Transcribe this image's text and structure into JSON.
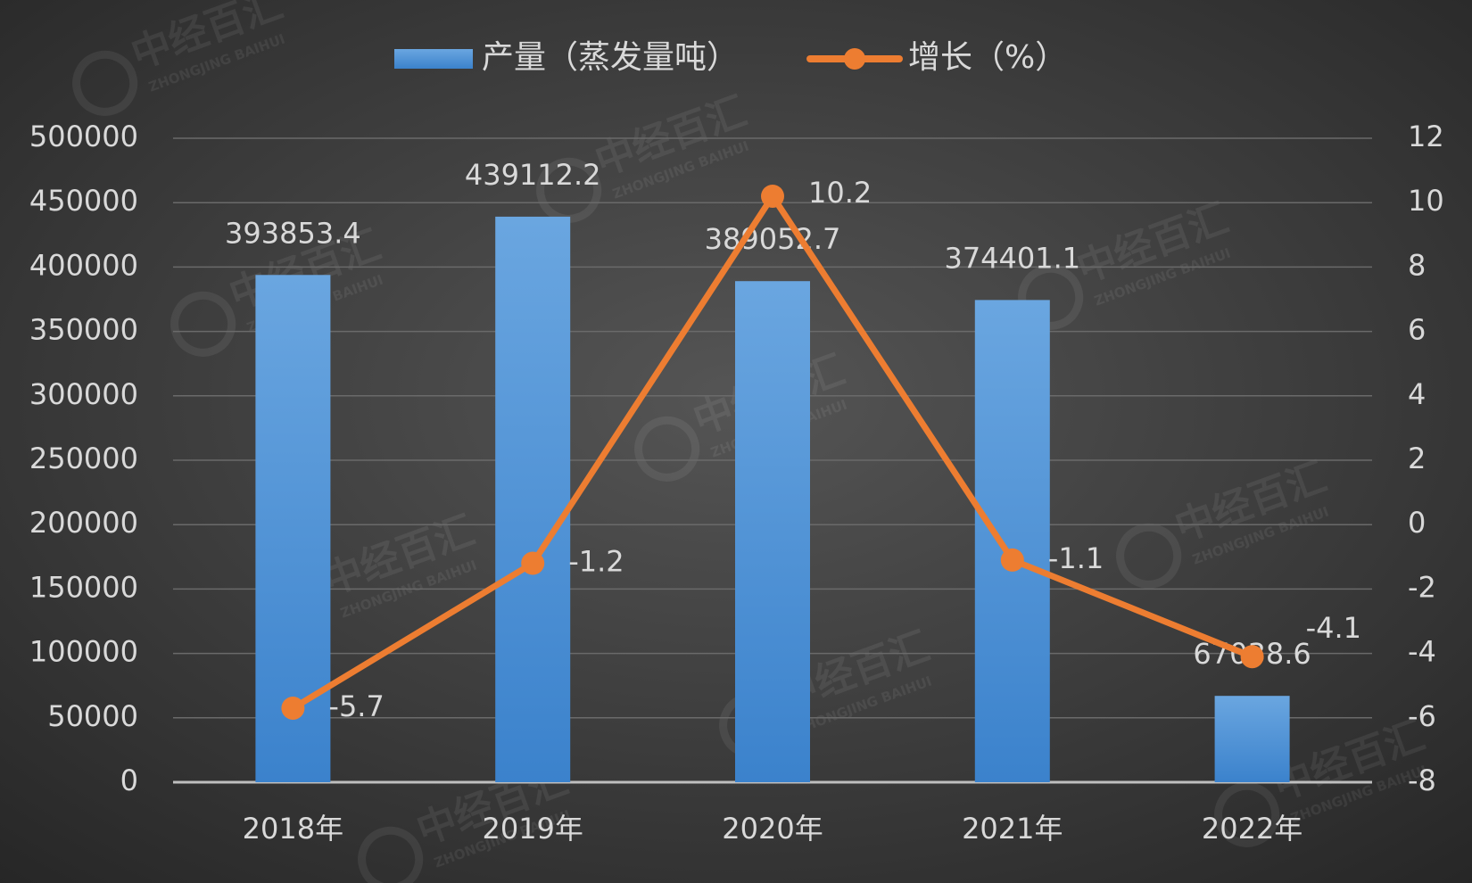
{
  "chart_data": {
    "type": "bar",
    "categories": [
      "2018年",
      "2019年",
      "2020年",
      "2021年",
      "2022年"
    ],
    "series": [
      {
        "name": "产量（蒸发量吨）",
        "color": "#5b9bd5",
        "values": [
          393853.4,
          439112.2,
          389052.7,
          374401.1,
          67038.6
        ]
      },
      {
        "name": "增长（%）",
        "color": "#ed7d31",
        "type": "line",
        "axis": "y2",
        "values": [
          -5.7,
          -1.2,
          10.2,
          -1.1,
          -4.1
        ]
      }
    ],
    "ylim": [
      0,
      500000
    ],
    "yticks": [
      0,
      50000,
      100000,
      150000,
      200000,
      250000,
      300000,
      350000,
      400000,
      450000,
      500000
    ],
    "y2lim": [
      -8,
      12
    ],
    "y2ticks": [
      -8,
      -6,
      -4,
      -2,
      0,
      2,
      4,
      6,
      8,
      10,
      12
    ],
    "grid": true,
    "legend": "top",
    "watermark": {
      "text": "中经百汇",
      "subtext": "ZHONGJING BAIHUI"
    }
  }
}
